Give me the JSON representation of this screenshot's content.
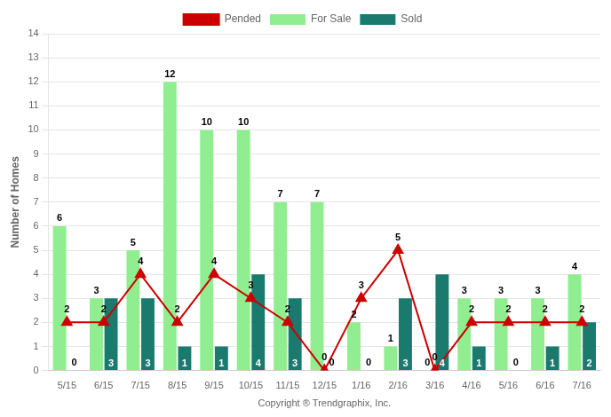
{
  "chart_data": {
    "type": "bar",
    "ylabel": "Number of Homes",
    "xlabel": "Copyright ® Trendgraphix, Inc.",
    "categories": [
      "5/15",
      "6/15",
      "7/15",
      "8/15",
      "9/15",
      "10/15",
      "11/15",
      "12/15",
      "1/16",
      "2/16",
      "3/16",
      "4/16",
      "5/16",
      "6/16",
      "7/16"
    ],
    "series": [
      {
        "name": "For Sale",
        "type": "bar",
        "color": "#90EE90",
        "values": [
          6,
          3,
          5,
          12,
          10,
          10,
          7,
          7,
          2,
          1,
          0,
          3,
          3,
          3,
          4
        ]
      },
      {
        "name": "Sold",
        "type": "bar",
        "color": "#1a7a6e",
        "values": [
          0,
          3,
          3,
          1,
          1,
          4,
          3,
          0,
          0,
          3,
          4,
          1,
          0,
          1,
          2
        ]
      },
      {
        "name": "Pended",
        "type": "line",
        "color": "#CC0000",
        "marker": "triangle",
        "values": [
          2,
          2,
          4,
          2,
          4,
          3,
          2,
          0,
          3,
          5,
          0,
          2,
          2,
          2,
          2
        ]
      }
    ],
    "ylim": [
      0,
      14
    ],
    "yticks": [
      0,
      1,
      2,
      3,
      4,
      5,
      6,
      7,
      8,
      9,
      10,
      11,
      12,
      13,
      14
    ],
    "grid": "y",
    "legend": "top",
    "data_labels": true
  }
}
